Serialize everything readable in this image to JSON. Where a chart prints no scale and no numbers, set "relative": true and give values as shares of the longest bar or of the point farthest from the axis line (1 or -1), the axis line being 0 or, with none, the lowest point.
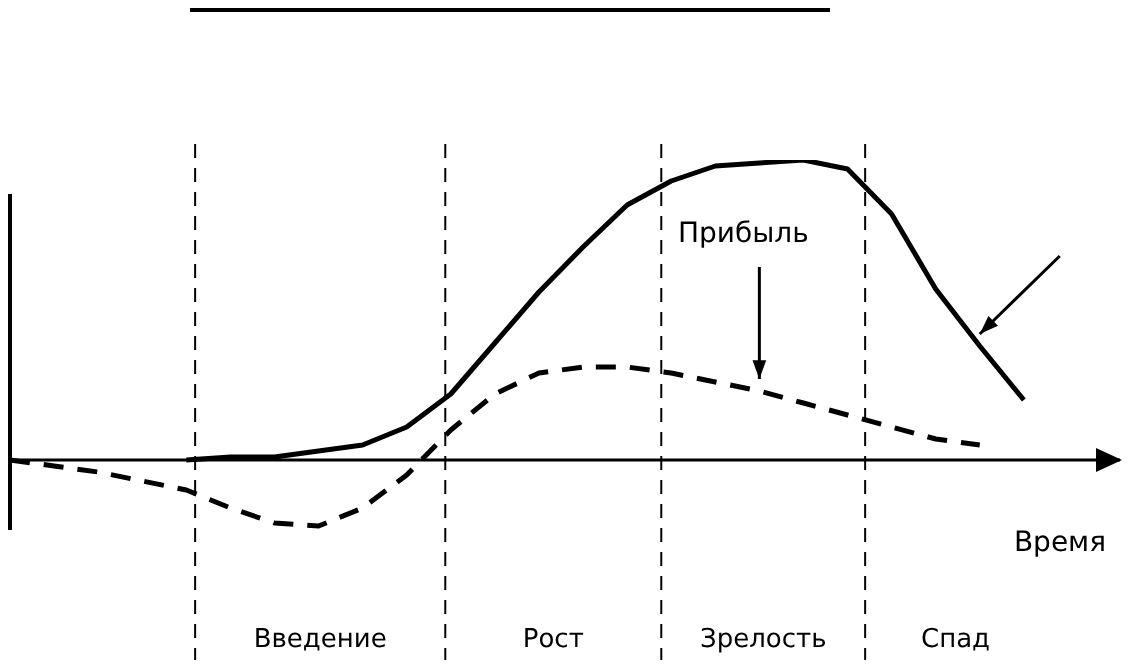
{
  "chart_data": {
    "type": "line",
    "relative": true,
    "xlabel": "Время",
    "categories": [
      null,
      null,
      null,
      null,
      null,
      null,
      null,
      null,
      null,
      null,
      null,
      null,
      null,
      null,
      null,
      null,
      null,
      null,
      null,
      null,
      null,
      null,
      null,
      null,
      null,
      null
    ],
    "series": [
      {
        "color": "#000000",
        "line_style": "solid",
        "values": [
          null,
          null,
          null,
          null,
          0,
          0.01,
          0.01,
          0.03,
          0.05,
          0.11,
          0.22,
          0.39,
          0.56,
          0.71,
          0.85,
          0.93,
          0.98,
          0.99,
          1,
          0.97,
          0.82,
          0.57,
          0.38,
          0.2,
          null,
          null
        ]
      },
      {
        "name": "Прибыль",
        "color": "#000000",
        "line_style": "dashed",
        "values": [
          0,
          -0.02,
          -0.04,
          -0.07,
          -0.1,
          -0.16,
          -0.21,
          -0.22,
          -0.16,
          -0.05,
          0.1,
          0.22,
          0.29,
          0.31,
          0.31,
          0.29,
          0.26,
          0.23,
          0.19,
          0.15,
          0.11,
          0.07,
          0.05,
          null,
          null,
          null
        ]
      }
    ],
    "annotations": [
      "Введение",
      "Рост",
      "Зрелость",
      "Спад"
    ],
    "marker": "none",
    "legend": false
  }
}
